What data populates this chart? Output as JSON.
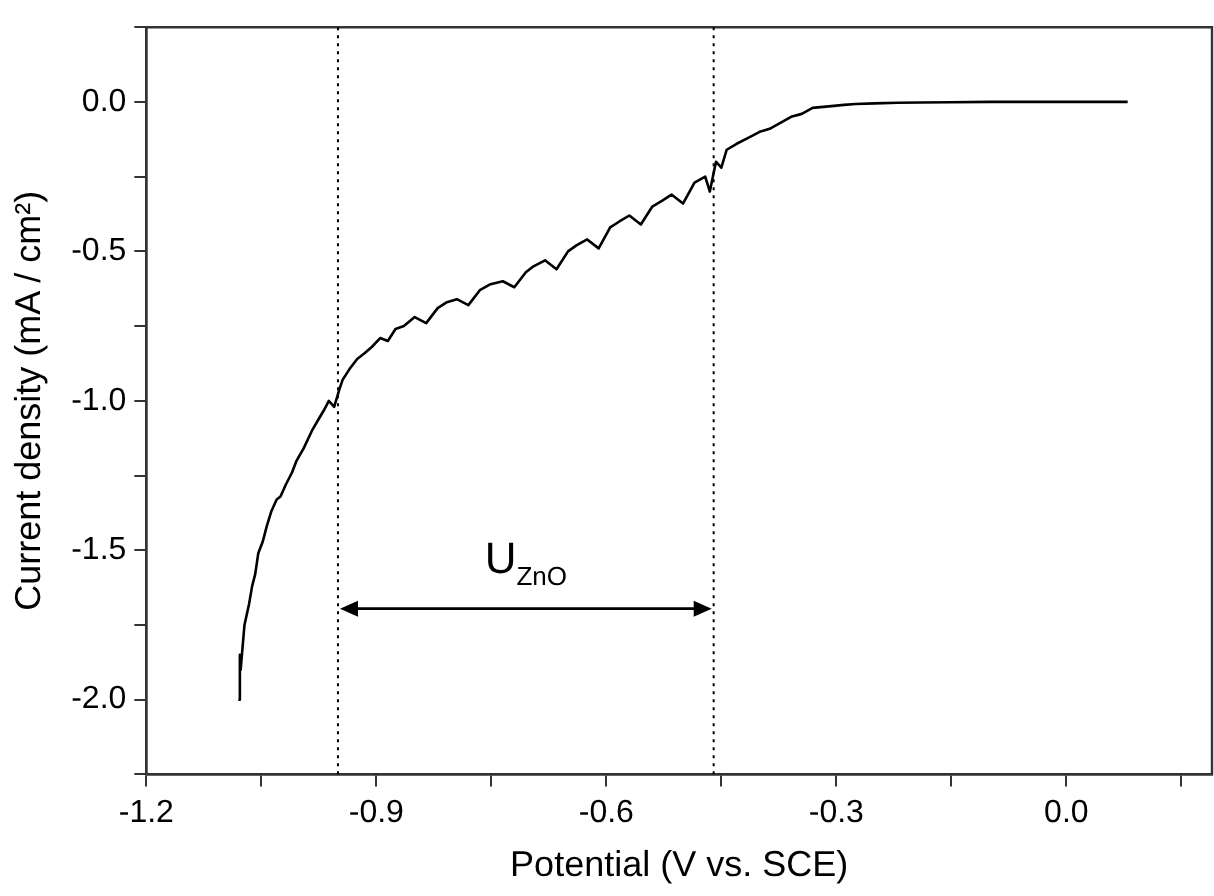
{
  "chart_data": {
    "type": "line",
    "xlabel": "Potential (V vs. SCE)",
    "ylabel": "Current density (mA / cm²)",
    "x": [
      -1.08,
      -1.078,
      -1.077,
      -1.072,
      -1.066,
      -1.062,
      -1.058,
      -1.054,
      -1.048,
      -1.043,
      -1.037,
      -1.03,
      -1.025,
      -1.018,
      -1.01,
      -1.004,
      -0.995,
      -0.984,
      -0.975,
      -0.968,
      -0.962,
      -0.955,
      -0.948,
      -0.944,
      -0.934,
      -0.925,
      -0.915,
      -0.906,
      -0.895,
      -0.885,
      -0.875,
      -0.864,
      -0.85,
      -0.835,
      -0.82,
      -0.808,
      -0.795,
      -0.78,
      -0.765,
      -0.751,
      -0.735,
      -0.72,
      -0.705,
      -0.695,
      -0.68,
      -0.665,
      -0.65,
      -0.639,
      -0.625,
      -0.61,
      -0.595,
      -0.583,
      -0.57,
      -0.555,
      -0.54,
      -0.527,
      -0.515,
      -0.5,
      -0.485,
      -0.471,
      -0.465,
      -0.457,
      -0.45,
      -0.443,
      -0.43,
      -0.415,
      -0.4,
      -0.387,
      -0.373,
      -0.359,
      -0.345,
      -0.331,
      -0.31,
      -0.29,
      -0.275,
      -0.25,
      -0.22,
      -0.19,
      -0.15,
      -0.1,
      -0.05,
      0,
      0.04,
      0.08
    ],
    "series": [
      {
        "color": "#000000",
        "values": [
          -2.0,
          -1.85,
          -1.9,
          -1.75,
          -1.68,
          -1.62,
          -1.58,
          -1.51,
          -1.47,
          -1.42,
          -1.37,
          -1.33,
          -1.32,
          -1.28,
          -1.24,
          -1.2,
          -1.16,
          -1.1,
          -1.06,
          -1.03,
          -1.0,
          -1.02,
          -0.96,
          -0.93,
          -0.89,
          -0.86,
          -0.84,
          -0.82,
          -0.79,
          -0.8,
          -0.76,
          -0.75,
          -0.72,
          -0.74,
          -0.69,
          -0.67,
          -0.66,
          -0.68,
          -0.63,
          -0.61,
          -0.6,
          -0.62,
          -0.57,
          -0.55,
          -0.53,
          -0.56,
          -0.5,
          -0.48,
          -0.46,
          -0.49,
          -0.42,
          -0.4,
          -0.38,
          -0.41,
          -0.35,
          -0.33,
          -0.31,
          -0.34,
          -0.27,
          -0.25,
          -0.3,
          -0.2,
          -0.22,
          -0.16,
          -0.14,
          -0.12,
          -0.1,
          -0.09,
          -0.07,
          -0.05,
          -0.04,
          -0.02,
          -0.015,
          -0.01,
          -0.007,
          -0.005,
          -0.003,
          -0.002,
          -0.001,
          0,
          0,
          0,
          0,
          0
        ]
      }
    ],
    "xlim": [
      -1.2,
      0.19
    ],
    "xticks": [
      {
        "value": -1.2,
        "label": "-1.2"
      },
      {
        "value": -1.05,
        "label": null
      },
      {
        "value": -0.9,
        "label": "-0.9"
      },
      {
        "value": -0.75,
        "label": null
      },
      {
        "value": -0.6,
        "label": "-0.6"
      },
      {
        "value": -0.45,
        "label": null
      },
      {
        "value": -0.3,
        "label": "-0.3"
      },
      {
        "value": -0.15,
        "label": null
      },
      {
        "value": 0,
        "label": "0.0"
      },
      {
        "value": 0.15,
        "label": null
      }
    ],
    "ylim": [
      -2.25,
      0.25
    ],
    "yticks": [
      {
        "value": -2.25,
        "label": null
      },
      {
        "value": -2,
        "label": "-2.0"
      },
      {
        "value": -1.75,
        "label": null
      },
      {
        "value": -1.5,
        "label": "-1.5"
      },
      {
        "value": -1.25,
        "label": null
      },
      {
        "value": -1,
        "label": "-1.0"
      },
      {
        "value": -0.75,
        "label": null
      },
      {
        "value": -0.5,
        "label": "-0.5"
      },
      {
        "value": -0.25,
        "label": null
      },
      {
        "value": 0,
        "label": "0.0"
      },
      {
        "value": 0.25,
        "label": null
      }
    ],
    "ref_lines": [
      {
        "axis": "x",
        "value": -0.95,
        "color": "#000000",
        "line_style": "dotted"
      },
      {
        "axis": "x",
        "value": -0.46,
        "color": "#000000",
        "line_style": "dotted"
      }
    ],
    "annotations": [
      "U$_{ZnO}$"
    ],
    "grid": false,
    "legend": false,
    "marker": "none",
    "line_style": "solid"
  }
}
